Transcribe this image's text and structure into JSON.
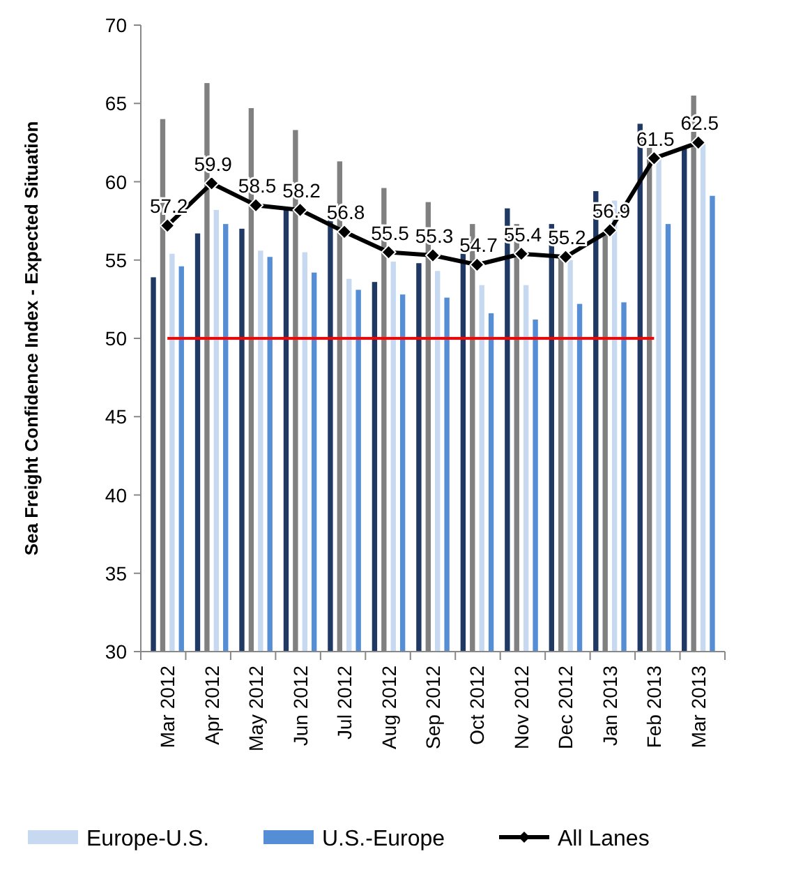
{
  "chart_data": {
    "type": "bar",
    "ylabel": "Sea Freight Confidence Index - Expected Situation",
    "categories": [
      "Mar 2012",
      "Apr 2012",
      "May 2012",
      "Jun 2012",
      "Jul 2012",
      "Aug 2012",
      "Sep 2012",
      "Oct 2012",
      "Nov 2012",
      "Dec 2012",
      "Jan 2013",
      "Feb 2013",
      "Mar 2013"
    ],
    "series": [
      {
        "color": "#1f3864",
        "values": [
          53.9,
          56.7,
          57.0,
          58.3,
          57.8,
          53.6,
          54.8,
          55.4,
          58.3,
          57.3,
          59.4,
          63.7,
          62.2
        ]
      },
      {
        "color": "#808080",
        "values": [
          64.0,
          66.3,
          64.7,
          63.3,
          61.3,
          59.6,
          58.7,
          57.3,
          57.3,
          55.3,
          56.8,
          62.4,
          65.5
        ]
      },
      {
        "name": "Europe-U.S.",
        "color": "#c6d9f1",
        "values": [
          55.4,
          58.2,
          55.6,
          55.5,
          53.8,
          54.9,
          54.3,
          53.4,
          53.4,
          55.0,
          58.8,
          61.5,
          62.4
        ]
      },
      {
        "name": "U.S.-Europe",
        "color": "#558ed5",
        "values": [
          54.6,
          57.3,
          55.2,
          54.2,
          53.1,
          52.8,
          52.6,
          51.6,
          51.2,
          52.2,
          52.3,
          57.3,
          59.1
        ]
      },
      {
        "name": "All Lanes",
        "type": "line",
        "color": "#000000",
        "marker": "diamond",
        "values": [
          57.2,
          59.9,
          58.5,
          58.2,
          56.8,
          55.5,
          55.3,
          54.7,
          55.4,
          55.2,
          56.9,
          61.5,
          62.5
        ],
        "value_labels": [
          "57.2",
          "59.9",
          "58.5",
          "58.2",
          "56.8",
          "55.5",
          "55.3",
          "54.7",
          "55.4",
          "55.2",
          "56.9",
          "61.5",
          "62.5"
        ]
      }
    ],
    "ylim": [
      30,
      70
    ],
    "yticks": [
      30,
      35,
      40,
      45,
      50,
      55,
      60,
      65,
      70
    ],
    "grid": false,
    "legend": "bottom",
    "ref_lines": [
      {
        "axis": "y",
        "value": 50,
        "color": "#ff0000"
      }
    ]
  }
}
